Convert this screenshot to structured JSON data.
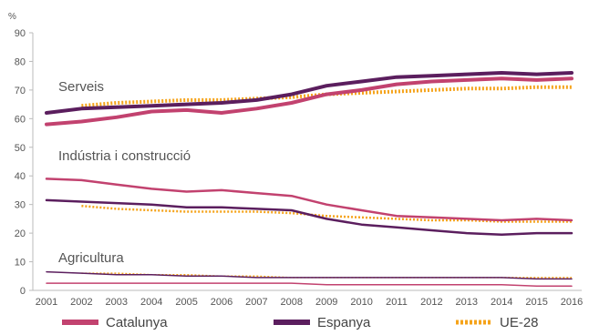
{
  "chart_data": {
    "type": "line",
    "title": "",
    "xlabel": "",
    "ylabel": "%",
    "ylim": [
      0,
      90
    ],
    "yticks": [
      0,
      10,
      20,
      30,
      40,
      50,
      60,
      70,
      80,
      90
    ],
    "x": [
      2001,
      2002,
      2003,
      2004,
      2005,
      2006,
      2007,
      2008,
      2009,
      2010,
      2011,
      2012,
      2013,
      2014,
      2015,
      2016
    ],
    "grid": false,
    "legend_position": "bottom",
    "legend": [
      {
        "name": "Catalunya",
        "color": "#c2426f",
        "style": "solid"
      },
      {
        "name": "Espanya",
        "color": "#5b1e5e",
        "style": "solid"
      },
      {
        "name": "UE-28",
        "color": "#f5a31a",
        "style": "dotted"
      }
    ],
    "annotations": [
      "Serveis",
      "Indústria i construcció",
      "Agricultura"
    ],
    "groups": [
      {
        "label": "Serveis",
        "series": [
          {
            "name": "Catalunya",
            "color": "#c2426f",
            "style": "solid",
            "width": 4,
            "values": [
              58.0,
              59.0,
              60.5,
              62.5,
              63.0,
              62.0,
              63.5,
              65.5,
              68.5,
              70.0,
              72.0,
              73.0,
              73.5,
              74.0,
              73.5,
              74.0
            ]
          },
          {
            "name": "Espanya",
            "color": "#5b1e5e",
            "style": "solid",
            "width": 4,
            "values": [
              62.0,
              63.5,
              64.0,
              64.5,
              65.0,
              65.5,
              66.5,
              68.5,
              71.5,
              73.0,
              74.5,
              75.0,
              75.5,
              76.0,
              75.5,
              76.0
            ]
          },
          {
            "name": "UE-28",
            "color": "#f5a31a",
            "style": "dotted",
            "width": 4,
            "values": [
              null,
              64.5,
              65.5,
              66.0,
              66.5,
              66.5,
              67.0,
              67.5,
              68.5,
              69.0,
              69.5,
              70.0,
              70.5,
              70.5,
              71.0,
              71.0
            ]
          }
        ]
      },
      {
        "label": "Indústria i construcció",
        "series": [
          {
            "name": "Catalunya",
            "color": "#c2426f",
            "style": "solid",
            "width": 2.5,
            "values": [
              39.0,
              38.5,
              37.0,
              35.5,
              34.5,
              35.0,
              34.0,
              33.0,
              30.0,
              28.0,
              26.0,
              25.5,
              25.0,
              24.5,
              25.0,
              24.5
            ]
          },
          {
            "name": "Espanya",
            "color": "#5b1e5e",
            "style": "solid",
            "width": 2.5,
            "values": [
              31.5,
              31.0,
              30.5,
              30.0,
              29.0,
              29.0,
              28.5,
              28.0,
              25.0,
              23.0,
              22.0,
              21.0,
              20.0,
              19.5,
              20.0,
              20.0
            ]
          },
          {
            "name": "UE-28",
            "color": "#f5a31a",
            "style": "dotted",
            "width": 2.5,
            "values": [
              null,
              29.5,
              28.5,
              28.0,
              27.5,
              27.5,
              27.5,
              27.0,
              26.0,
              25.5,
              25.0,
              24.5,
              24.5,
              24.0,
              24.0,
              24.0
            ]
          }
        ]
      },
      {
        "label": "Agricultura",
        "series": [
          {
            "name": "Catalunya",
            "color": "#c2426f",
            "style": "solid",
            "width": 1.5,
            "values": [
              2.5,
              2.5,
              2.5,
              2.5,
              2.5,
              2.5,
              2.5,
              2.5,
              2.0,
              2.0,
              2.0,
              2.0,
              2.0,
              2.0,
              1.5,
              1.5
            ]
          },
          {
            "name": "Espanya",
            "color": "#5b1e5e",
            "style": "solid",
            "width": 1.5,
            "values": [
              6.5,
              6.0,
              5.5,
              5.5,
              5.0,
              5.0,
              4.5,
              4.5,
              4.5,
              4.5,
              4.5,
              4.5,
              4.5,
              4.5,
              4.0,
              4.0
            ]
          },
          {
            "name": "UE-28",
            "color": "#f5a31a",
            "style": "dotted",
            "width": 1.5,
            "values": [
              null,
              6.0,
              6.0,
              5.5,
              5.5,
              5.0,
              5.0,
              4.5,
              4.5,
              4.5,
              4.5,
              4.5,
              4.5,
              4.5,
              4.5,
              4.5
            ]
          }
        ]
      }
    ]
  }
}
